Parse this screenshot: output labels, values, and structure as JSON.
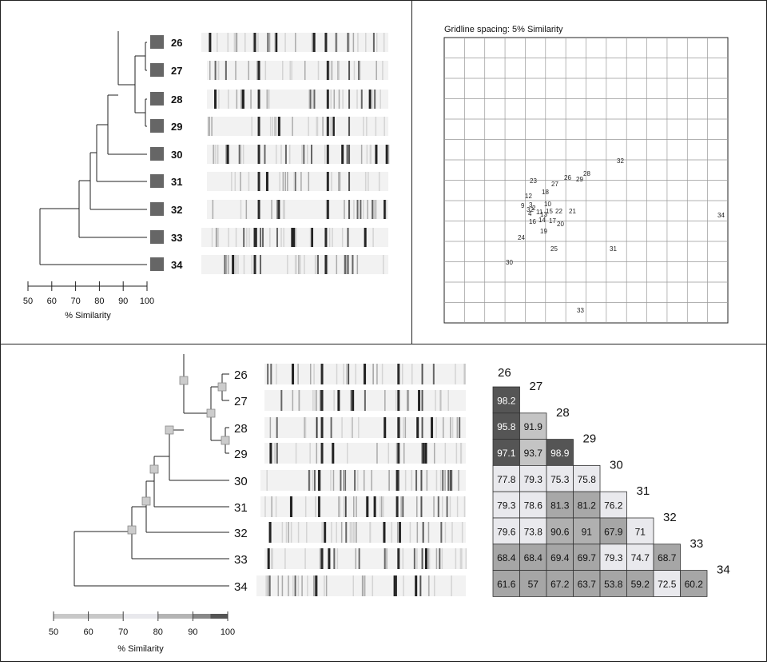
{
  "isolates": [
    "26",
    "27",
    "28",
    "29",
    "30",
    "31",
    "32",
    "33",
    "34"
  ],
  "scale_axis": {
    "ticks": [
      "50",
      "60",
      "70",
      "80",
      "90",
      "100"
    ],
    "label": "% Similarity"
  },
  "top_left": {
    "swatch_color": "#666666"
  },
  "mds_plot": {
    "caption": "Gridline spacing: 5% Similarity",
    "labels": [
      "32",
      "23",
      "27",
      "26",
      "29",
      "28",
      "18",
      "12",
      "10",
      "9",
      "3",
      "32",
      "2",
      "4",
      "11",
      "15",
      "22",
      "21",
      "34",
      "16",
      "13",
      "14",
      "17",
      "20",
      "19",
      "24",
      "25",
      "31",
      "30",
      "33"
    ]
  },
  "similarity_matrix": {
    "rows": [
      [
        "98.2"
      ],
      [
        "95.8",
        "91.9"
      ],
      [
        "97.1",
        "93.7",
        "98.9"
      ],
      [
        "77.8",
        "79.3",
        "75.3",
        "75.8"
      ],
      [
        "79.3",
        "78.6",
        "81.3",
        "81.2",
        "76.2"
      ],
      [
        "79.6",
        "73.8",
        "90.6",
        "91",
        "67.9",
        "71"
      ],
      [
        "68.4",
        "68.4",
        "69.4",
        "69.7",
        "79.3",
        "74.7",
        "68.7"
      ],
      [
        "61.6",
        "57",
        "67.2",
        "63.7",
        "53.8",
        "59.2",
        "72.5",
        "60.2"
      ]
    ],
    "scale_colors": [
      "#b4b4b4",
      "#c8c8c8",
      "#e8e8ec",
      "#aaaaaa",
      "#888888",
      "#555555"
    ]
  }
}
